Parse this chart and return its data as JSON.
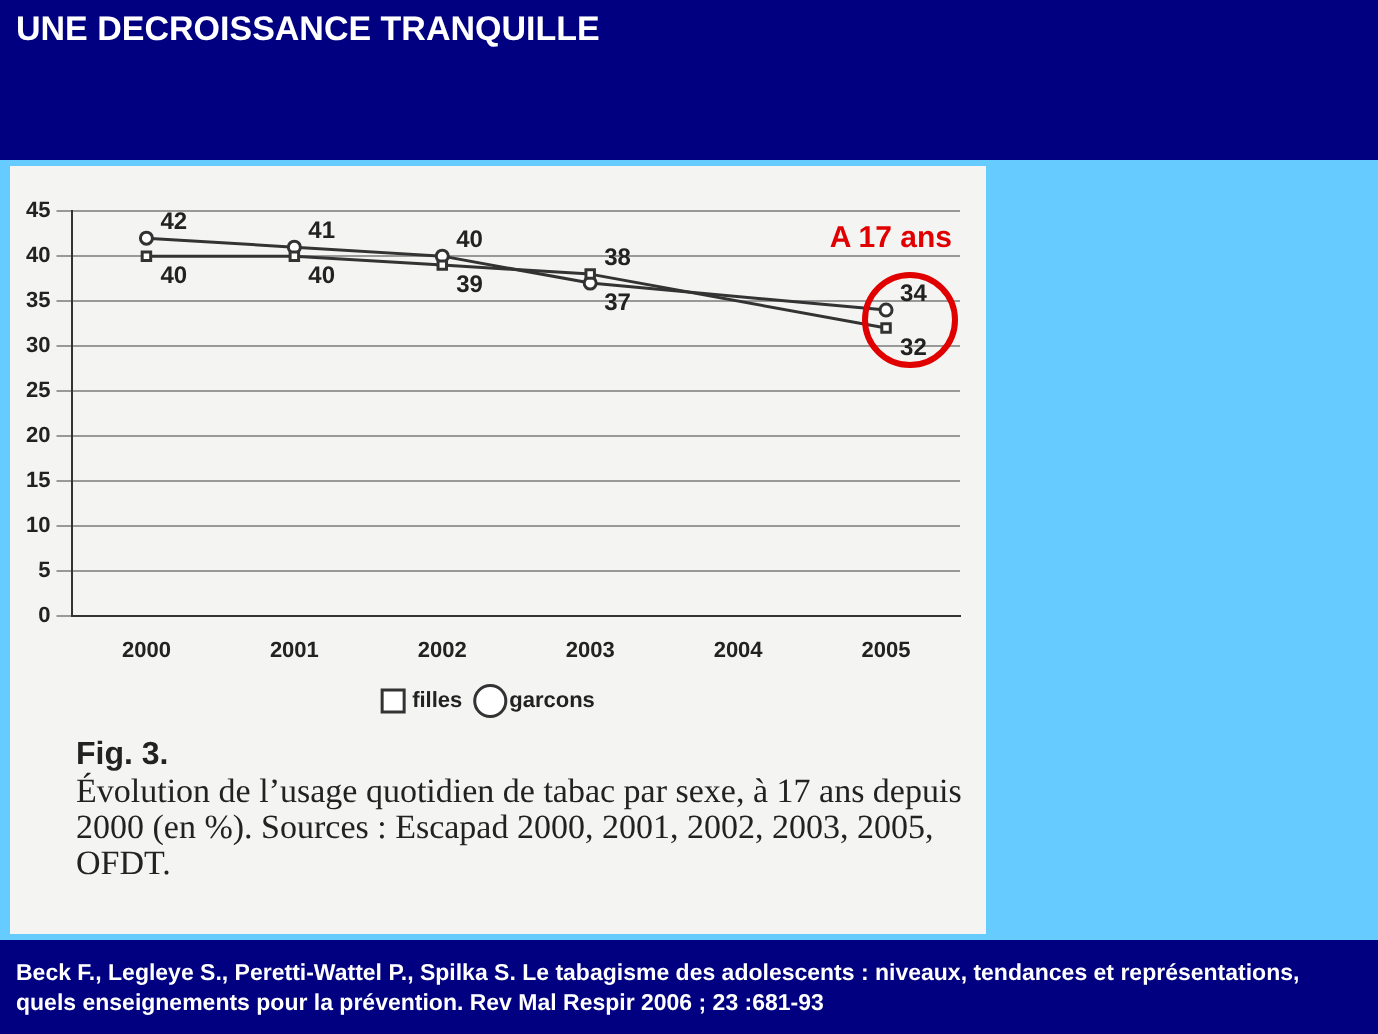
{
  "chart_data": {
    "type": "line",
    "title": "UNE DECROISSANCE TRANQUILLE",
    "categories": [
      "2000",
      "2001",
      "2002",
      "2003",
      "2004",
      "2005"
    ],
    "series": [
      {
        "name": "filles",
        "color": "#333333",
        "marker": "square",
        "values": [
          40,
          40,
          39,
          38,
          null,
          32
        ]
      },
      {
        "name": "garcons",
        "color": "#333333",
        "marker": "circle",
        "values": [
          42,
          41,
          40,
          37,
          null,
          34
        ]
      }
    ],
    "ylim": [
      0,
      45
    ],
    "yticks": [
      0,
      5,
      10,
      15,
      20,
      25,
      30,
      35,
      40,
      45
    ],
    "grid": "y",
    "legend": "bottom",
    "data_labels": true,
    "line_style": "solid",
    "annotations": [
      "A 17 ans",
      "Fig. 3.",
      "Évolution de l’usage quotidien de tabac par sexe, à 17 ans depuis 2000 (en %). Sources : Escapad 2000, 2001, 2002, 2003, 2005, OFDT.",
      "Beck F., Legleye S., Peretti-Wattel P., Spilka S.  Le tabagisme des adolescents : niveaux, tendances et représentations, quels enseignements pour la prévention. Rev Mal Respir 2006 ; 23 :681-93"
    ]
  }
}
